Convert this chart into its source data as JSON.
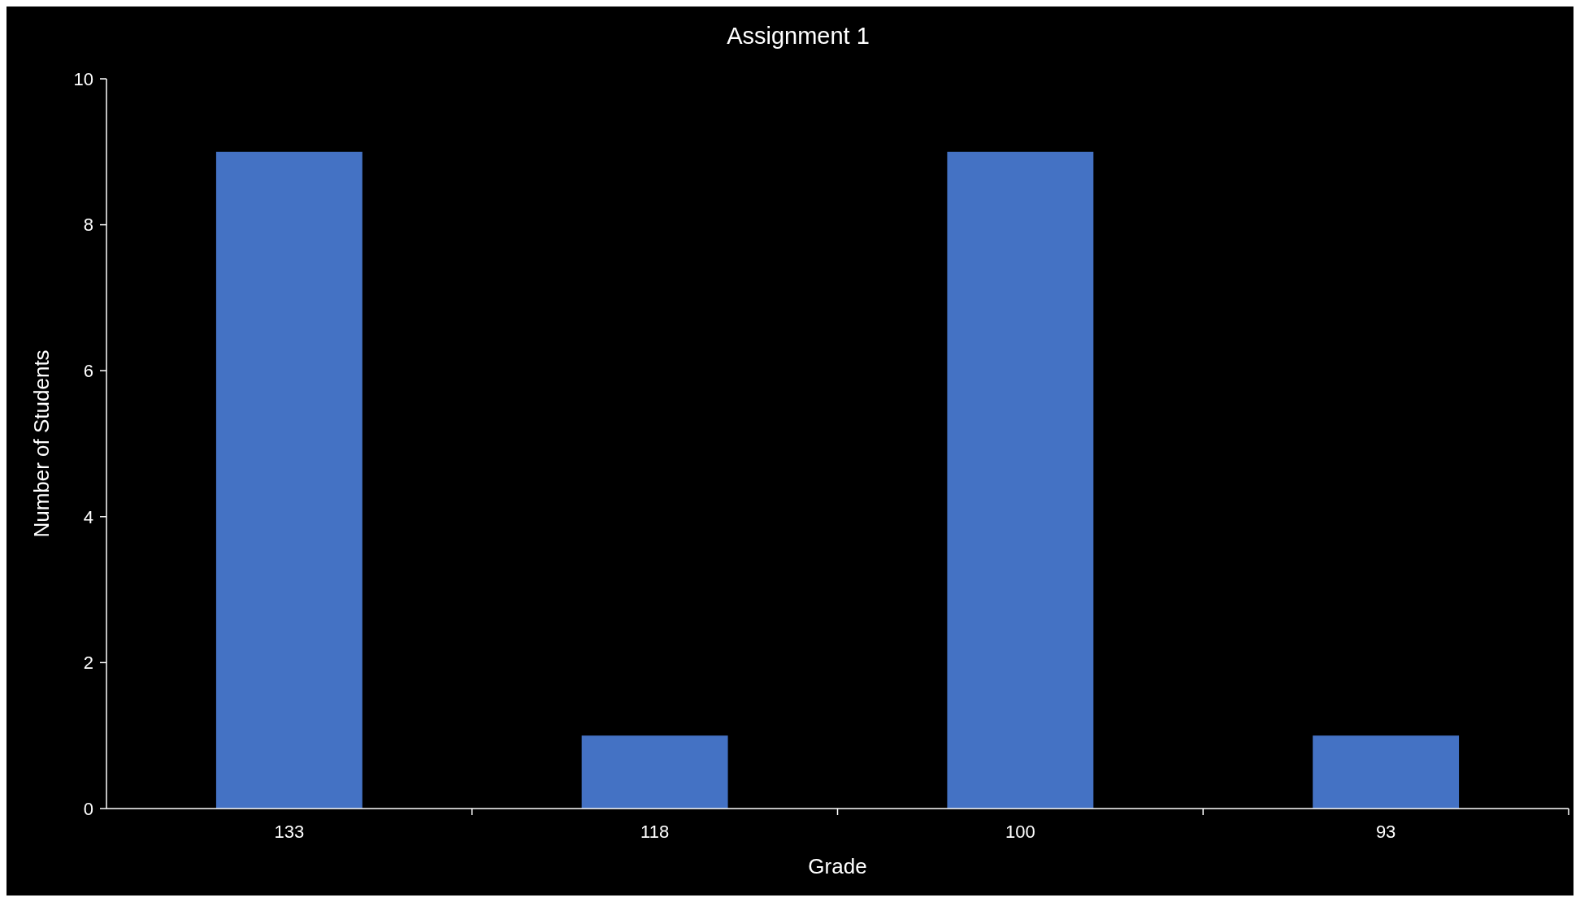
{
  "chart_data": {
    "type": "bar",
    "title": "Assignment 1",
    "xlabel": "Grade",
    "ylabel": "Number of Students",
    "categories": [
      "133",
      "118",
      "100",
      "93"
    ],
    "values": [
      9,
      1,
      9,
      1
    ],
    "color": "#4472c4",
    "ylim": [
      0,
      10
    ],
    "yticks": [
      0,
      2,
      4,
      6,
      8,
      10
    ],
    "grid": false
  }
}
